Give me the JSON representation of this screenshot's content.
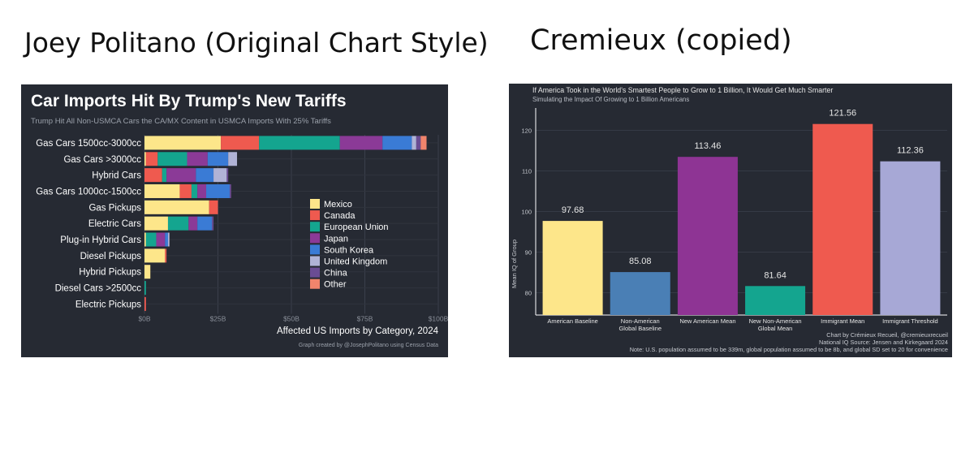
{
  "headings": {
    "left": "Joey Politano (Original Chart Style)",
    "right": "Cremieux (copied)"
  },
  "chart_data": [
    {
      "type": "bar",
      "orientation": "horizontal",
      "stacked": true,
      "title": "Car Imports Hit By Trump's New Tariffs",
      "subtitle": "Trump Hit All Non-USMCA Cars the CA/MX Content in USMCA Imports With 25% Tariffs",
      "xlabel": "Affected US Imports by Category, 2024",
      "ylabel": "",
      "caption": "Graph created by @JosephPolitano using Census Data",
      "xlim": [
        0,
        100
      ],
      "x_ticks": [
        "$0B",
        "$25B",
        "$50B",
        "$75B",
        "$100B"
      ],
      "grid": true,
      "legend_position": "center-right",
      "categories": [
        "Gas Cars 1500cc-3000cc",
        "Gas Cars >3000cc",
        "Hybrid Cars",
        "Gas Cars 1000cc-1500cc",
        "Gas Pickups",
        "Electric Cars",
        "Plug-in Hybrid Cars",
        "Diesel Pickups",
        "Hybrid Pickups",
        "Diesel Cars >2500cc",
        "Electric Pickups"
      ],
      "series": [
        {
          "name": "Mexico",
          "color": "#fde68a",
          "values": [
            26,
            0.5,
            0,
            12,
            22,
            8,
            0.5,
            7,
            2,
            0,
            0
          ]
        },
        {
          "name": "Canada",
          "color": "#ef5a4f",
          "values": [
            13,
            4,
            6,
            4,
            3,
            0,
            0,
            0.5,
            0,
            0,
            0.5
          ]
        },
        {
          "name": "European Union",
          "color": "#14a58f",
          "values": [
            27.5,
            10,
            1.5,
            2,
            0,
            7,
            3.5,
            0,
            0,
            0.5,
            0
          ]
        },
        {
          "name": "Japan",
          "color": "#8b3a97",
          "values": [
            14.5,
            7,
            10,
            3,
            0,
            3,
            3,
            0,
            0,
            0,
            0
          ]
        },
        {
          "name": "South Korea",
          "color": "#3a7bd5",
          "values": [
            10,
            7,
            6,
            8,
            0,
            5,
            1,
            0,
            0,
            0,
            0
          ]
        },
        {
          "name": "United Kingdom",
          "color": "#b0b3d6",
          "values": [
            1.5,
            3,
            4.5,
            0,
            0,
            0,
            0.5,
            0,
            0,
            0,
            0
          ]
        },
        {
          "name": "China",
          "color": "#6a4c93",
          "values": [
            1.5,
            0,
            0.5,
            0.5,
            0,
            0.5,
            0,
            0,
            0,
            0,
            0
          ]
        },
        {
          "name": "Other",
          "color": "#f0846c",
          "values": [
            2,
            0,
            0,
            0,
            0,
            0,
            0,
            0,
            0,
            0,
            0
          ]
        }
      ]
    },
    {
      "type": "bar",
      "title": "If America Took in the World's Smartest People to Grow to 1 Billion, It Would Get Much Smarter",
      "subtitle": "Simulating the Impact Of Growing to 1 Billion Americans",
      "ylabel": "Mean IQ of Group",
      "xlabel": "",
      "ylim": [
        74.5,
        125.5
      ],
      "y_ticks": [
        80,
        90,
        100,
        110,
        120
      ],
      "grid": true,
      "categories": [
        "American Baseline",
        "Non-American\nGlobal Baseline",
        "New American Mean",
        "New Non-American\nGlobal Mean",
        "Immigrant Mean",
        "Immigrant Threshold"
      ],
      "values": [
        97.68,
        85.08,
        113.46,
        81.64,
        121.56,
        112.36
      ],
      "value_labels": [
        "97.68",
        "85.08",
        "113.46",
        "81.64",
        "121.56",
        "112.36"
      ],
      "colors": [
        "#fde68a",
        "#4a7fb5",
        "#8e3494",
        "#14a58f",
        "#ef5a4f",
        "#a7a8d6"
      ],
      "notes": [
        "Chart by Crémieux Recueil, @cremieuxrecueil",
        "National IQ Source: Jensen and Kirkegaard 2024",
        "Note: U.S. population assumed to be 339m, global population assumed to be 8b, and global SD set to 20 for convenience"
      ]
    }
  ]
}
